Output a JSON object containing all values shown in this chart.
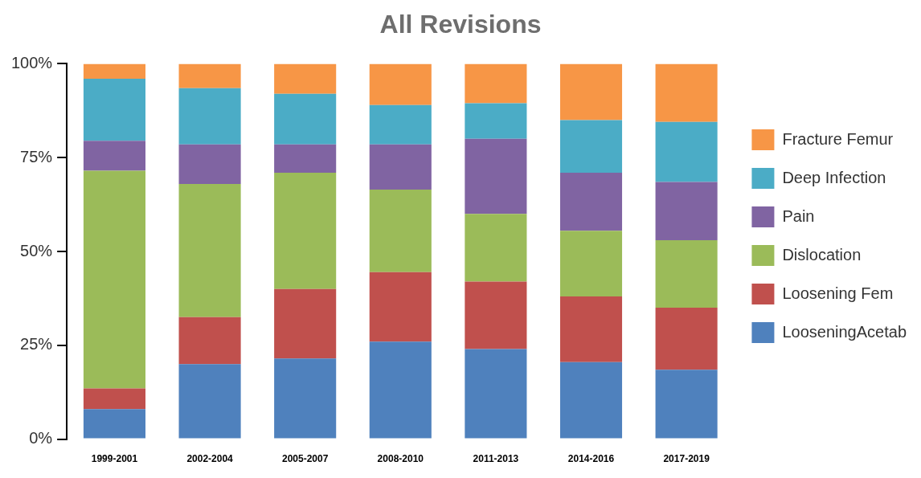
{
  "chart_data": {
    "type": "bar",
    "title": "All Revisions",
    "stacked": true,
    "legend": "right",
    "grid": false,
    "categories": [
      "1999-2001",
      "2002-2004",
      "2005-2007",
      "2008-2010",
      "2011-2013",
      "2014-2016",
      "2017-2019"
    ],
    "ylim": [
      0,
      100
    ],
    "yticks": [
      {
        "value": 0,
        "label": "0%"
      },
      {
        "value": 25,
        "label": "25%"
      },
      {
        "value": 50,
        "label": "50%"
      },
      {
        "value": 75,
        "label": "75%"
      },
      {
        "value": 100,
        "label": "100%"
      }
    ],
    "series": [
      {
        "name": "LooseningAcetab",
        "color": "#4f81bd",
        "values": [
          8,
          20,
          21.5,
          26,
          24,
          20.5,
          18.5
        ]
      },
      {
        "name": "Loosening Fem",
        "color": "#c0504d",
        "values": [
          5.5,
          12.5,
          18.5,
          18.5,
          18,
          17.5,
          16.5
        ]
      },
      {
        "name": "Dislocation",
        "color": "#9bbb59",
        "values": [
          58,
          35.5,
          31,
          22,
          18,
          17.5,
          18
        ]
      },
      {
        "name": "Pain",
        "color": "#8064a2",
        "values": [
          8,
          10.5,
          7.5,
          12,
          20,
          15.5,
          15.5
        ]
      },
      {
        "name": "Deep Infection",
        "color": "#4bacc6",
        "values": [
          16.5,
          15,
          13.5,
          10.5,
          9.5,
          14,
          16
        ]
      },
      {
        "name": "Fracture Femur",
        "color": "#f79646",
        "values": [
          4,
          6.5,
          8,
          11,
          10.5,
          15,
          15.5
        ]
      }
    ]
  }
}
